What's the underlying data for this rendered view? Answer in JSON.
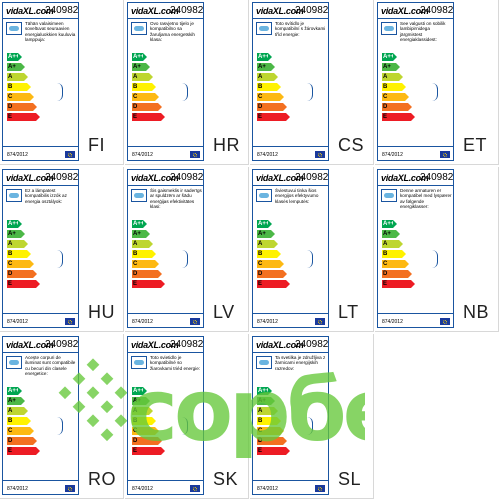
{
  "labels": [
    {
      "lang": "FI",
      "code": "240982",
      "brand": "vidaXL.com",
      "regulation": "874/2012",
      "text": "Tähän valaisimeen soveltuvat seuraavien energialuokkien kuuluvia lamppuja:",
      "classes": [
        "A++",
        "A+",
        "A",
        "B",
        "C",
        "D",
        "E"
      ]
    },
    {
      "lang": "HR",
      "code": "240982",
      "brand": "vidaXL.com",
      "regulation": "874/2012",
      "text": "Ovo rasvjetno tijelo je kompatibilno sa žaruljama energetskih klasa:",
      "classes": [
        "A++",
        "A+",
        "A",
        "B",
        "C",
        "D",
        "E"
      ]
    },
    {
      "lang": "CS",
      "code": "240982",
      "brand": "vidaXL.com",
      "regulation": "874/2012",
      "text": "Toto svítidlo je kompatibilní s žárovkami tříd energie:",
      "classes": [
        "A++",
        "A+",
        "A",
        "B",
        "C",
        "D",
        "E"
      ]
    },
    {
      "lang": "ET",
      "code": "240982",
      "brand": "vidaXL.com",
      "regulation": "874/2012",
      "text": "See valgusti on sobilik lambipirnidega järgmistest energiaklassidest:",
      "classes": [
        "A++",
        "A+",
        "A",
        "B",
        "C",
        "D",
        "E"
      ]
    },
    {
      "lang": "HU",
      "code": "240982",
      "brand": "vidaXL.com",
      "regulation": "874/2012",
      "text": "Ez a lámpatest kompatibilis izzók az energia osztályok:",
      "classes": [
        "A++",
        "A+",
        "A",
        "B",
        "C",
        "D",
        "E"
      ]
    },
    {
      "lang": "LV",
      "code": "240982",
      "brand": "vidaXL.com",
      "regulation": "874/2012",
      "text": "Šis gaismeklis ir saderīgs ar spuldzēm ar šādu enerģijas efektivitātes klasi:",
      "classes": [
        "A++",
        "A+",
        "A",
        "B",
        "C",
        "D",
        "E"
      ]
    },
    {
      "lang": "LT",
      "code": "240982",
      "brand": "vidaXL.com",
      "regulation": "874/2012",
      "text": "Šviestuvui tinka šios energijos efektyvumo klasės lemputės:",
      "classes": [
        "A++",
        "A+",
        "A",
        "B",
        "C",
        "D",
        "E"
      ]
    },
    {
      "lang": "NB",
      "code": "240982",
      "brand": "vidaXL.com",
      "regulation": "874/2012",
      "text": "Denne armaturen er kompatibel med lyspærer av følgende energiklasser:",
      "classes": [
        "A++",
        "A+",
        "A",
        "B",
        "C",
        "D",
        "E"
      ]
    },
    {
      "lang": "RO",
      "code": "240982",
      "brand": "vidaXL.com",
      "regulation": "874/2012",
      "text": "Acește corpuri de iluminat sunt compatibile cu becuri din clasele energetice:",
      "classes": [
        "A++",
        "A+",
        "A",
        "B",
        "C",
        "D",
        "E"
      ]
    },
    {
      "lang": "SK",
      "code": "240982",
      "brand": "vidaXL.com",
      "regulation": "874/2012",
      "text": "Toto svietidlo je kompatibilné so žiarovkami triéd energie:",
      "classes": [
        "A++",
        "A+",
        "A",
        "B",
        "C",
        "D",
        "E"
      ]
    },
    {
      "lang": "SL",
      "code": "240982",
      "brand": "vidaXL.com",
      "regulation": "874/2012",
      "text": "Ta svetilka je združljiva z žarnicami energijskih razredov:",
      "classes": [
        "A++",
        "A+",
        "A",
        "B",
        "C",
        "D",
        "E"
      ]
    }
  ],
  "watermark": {
    "text": "copбé",
    "color": "#66c83a"
  }
}
